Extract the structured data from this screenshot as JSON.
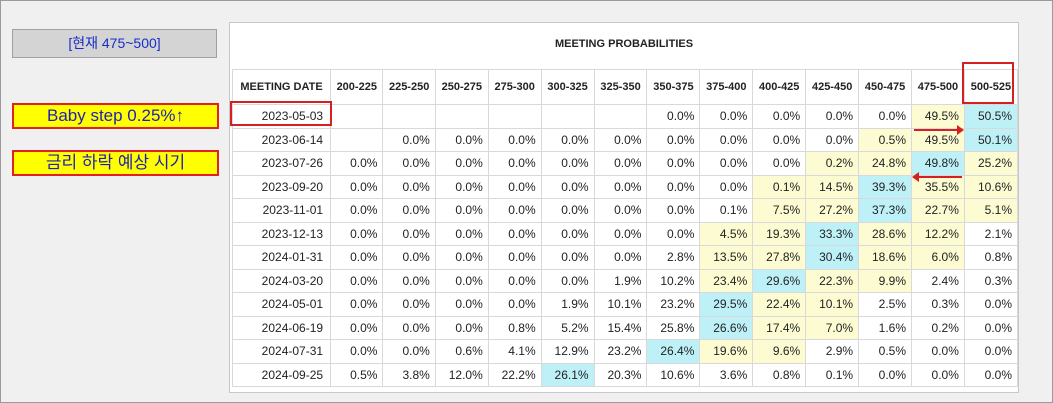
{
  "labels": {
    "current_range": "[현재 475~500]",
    "note_baby_step": "Baby step 0.25%↑",
    "note_rate_cut": "금리 하락 예상 시기"
  },
  "chart_data": {
    "type": "table",
    "title": "MEETING PROBABILITIES",
    "columns": [
      "MEETING DATE",
      "200-225",
      "225-250",
      "250-275",
      "275-300",
      "300-325",
      "325-350",
      "350-375",
      "375-400",
      "400-425",
      "425-450",
      "450-475",
      "475-500",
      "500-525"
    ],
    "rows": [
      {
        "date": "2023-05-03",
        "values": [
          "",
          "",
          "",
          "",
          "",
          "",
          "0.0%",
          "0.0%",
          "0.0%",
          "0.0%",
          "0.0%",
          "49.5%",
          "50.5%"
        ]
      },
      {
        "date": "2023-06-14",
        "values": [
          "",
          "0.0%",
          "0.0%",
          "0.0%",
          "0.0%",
          "0.0%",
          "0.0%",
          "0.0%",
          "0.0%",
          "0.0%",
          "0.5%",
          "49.5%",
          "50.1%"
        ]
      },
      {
        "date": "2023-07-26",
        "values": [
          "0.0%",
          "0.0%",
          "0.0%",
          "0.0%",
          "0.0%",
          "0.0%",
          "0.0%",
          "0.0%",
          "0.0%",
          "0.2%",
          "24.8%",
          "49.8%",
          "25.2%"
        ]
      },
      {
        "date": "2023-09-20",
        "values": [
          "0.0%",
          "0.0%",
          "0.0%",
          "0.0%",
          "0.0%",
          "0.0%",
          "0.0%",
          "0.0%",
          "0.1%",
          "14.5%",
          "39.3%",
          "35.5%",
          "10.6%"
        ]
      },
      {
        "date": "2023-11-01",
        "values": [
          "0.0%",
          "0.0%",
          "0.0%",
          "0.0%",
          "0.0%",
          "0.0%",
          "0.0%",
          "0.1%",
          "7.5%",
          "27.2%",
          "37.3%",
          "22.7%",
          "5.1%"
        ]
      },
      {
        "date": "2023-12-13",
        "values": [
          "0.0%",
          "0.0%",
          "0.0%",
          "0.0%",
          "0.0%",
          "0.0%",
          "0.0%",
          "4.5%",
          "19.3%",
          "33.3%",
          "28.6%",
          "12.2%",
          "2.1%"
        ]
      },
      {
        "date": "2024-01-31",
        "values": [
          "0.0%",
          "0.0%",
          "0.0%",
          "0.0%",
          "0.0%",
          "0.0%",
          "2.8%",
          "13.5%",
          "27.8%",
          "30.4%",
          "18.6%",
          "6.0%",
          "0.8%"
        ]
      },
      {
        "date": "2024-03-20",
        "values": [
          "0.0%",
          "0.0%",
          "0.0%",
          "0.0%",
          "0.0%",
          "1.9%",
          "10.2%",
          "23.4%",
          "29.6%",
          "22.3%",
          "9.9%",
          "2.4%",
          "0.3%"
        ]
      },
      {
        "date": "2024-05-01",
        "values": [
          "0.0%",
          "0.0%",
          "0.0%",
          "0.0%",
          "1.9%",
          "10.1%",
          "23.2%",
          "29.5%",
          "22.4%",
          "10.1%",
          "2.5%",
          "0.3%",
          "0.0%"
        ]
      },
      {
        "date": "2024-06-19",
        "values": [
          "0.0%",
          "0.0%",
          "0.0%",
          "0.8%",
          "5.2%",
          "15.4%",
          "25.8%",
          "26.6%",
          "17.4%",
          "7.0%",
          "1.6%",
          "0.2%",
          "0.0%"
        ]
      },
      {
        "date": "2024-07-31",
        "values": [
          "0.0%",
          "0.0%",
          "0.6%",
          "4.1%",
          "12.9%",
          "23.2%",
          "26.4%",
          "19.6%",
          "9.6%",
          "2.9%",
          "0.5%",
          "0.0%",
          "0.0%"
        ]
      },
      {
        "date": "2024-09-25",
        "values": [
          "0.5%",
          "3.8%",
          "12.0%",
          "22.2%",
          "26.1%",
          "20.3%",
          "10.6%",
          "3.6%",
          "0.8%",
          "0.1%",
          "0.0%",
          "0.0%",
          "0.0%"
        ]
      }
    ],
    "cell_colors": {
      "max": "#bdf1f7",
      "near": "#fcfbd2"
    }
  }
}
